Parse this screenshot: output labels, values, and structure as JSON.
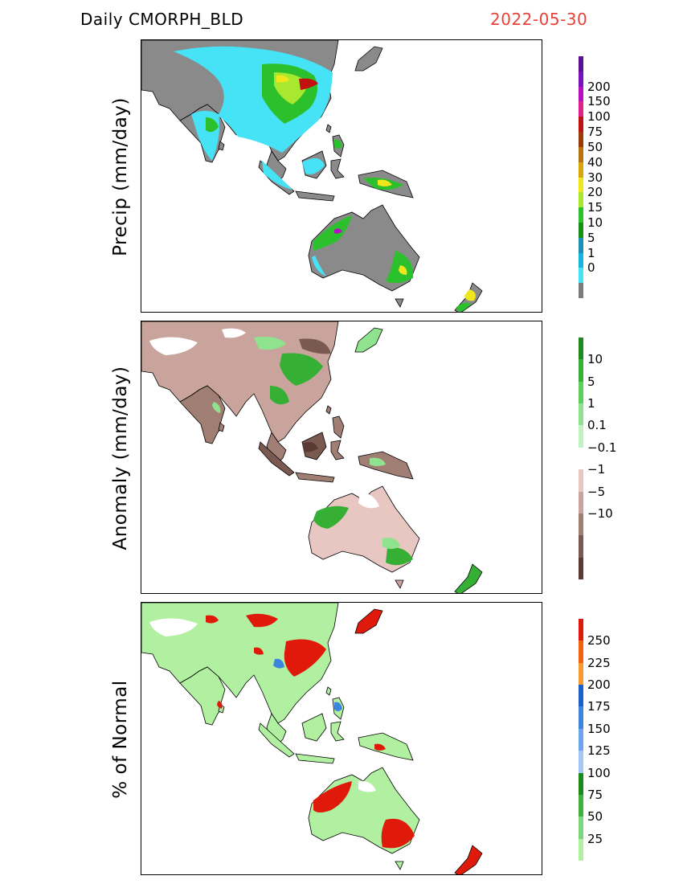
{
  "header": {
    "product": "Daily  CMORPH_BLD",
    "date": "2022-05-30",
    "date_color": "#e8413a"
  },
  "panels": [
    {
      "id": "precip",
      "ylabel": "Precip  (mm/day)",
      "colorbar": {
        "colors": [
          "#5a1294",
          "#7a12bb",
          "#b50fc0",
          "#e0208c",
          "#c01010",
          "#9a3a07",
          "#b87310",
          "#d8a60a",
          "#f0e61c",
          "#a8e82e",
          "#2cc02c",
          "#159015",
          "#1b8fb5",
          "#18b4e0",
          "#46e2f6",
          "#7c7c7c"
        ],
        "labels": [
          "200",
          "150",
          "100",
          "75",
          "50",
          "40",
          "30",
          "20",
          "15",
          "10",
          "5",
          "1",
          "0"
        ]
      }
    },
    {
      "id": "anomaly",
      "ylabel": "Anomaly  (mm/day)",
      "colorbar": {
        "colors": [
          "#1e8a1e",
          "#35b035",
          "#5ccf5c",
          "#8fe38f",
          "#c2f2c2",
          "#ffffff",
          "#e8c6c2",
          "#c8a49c",
          "#a07e74",
          "#7a5a50",
          "#5a3a32"
        ],
        "labels": [
          "10",
          "5",
          "1",
          "0.1",
          "−0.1",
          "−1",
          "−5",
          "−10"
        ]
      }
    },
    {
      "id": "percent",
      "ylabel": "% of Normal",
      "colorbar": {
        "colors": [
          "#e01a0a",
          "#f0620e",
          "#f89a32",
          "#1a60c8",
          "#3c84dc",
          "#6ea4ee",
          "#a4c6f4",
          "#1a8a1a",
          "#3eb03e",
          "#7ad87a",
          "#b0f0a0"
        ],
        "labels": [
          "250",
          "225",
          "200",
          "175",
          "150",
          "125",
          "100",
          "75",
          "50",
          "25"
        ]
      }
    }
  ]
}
